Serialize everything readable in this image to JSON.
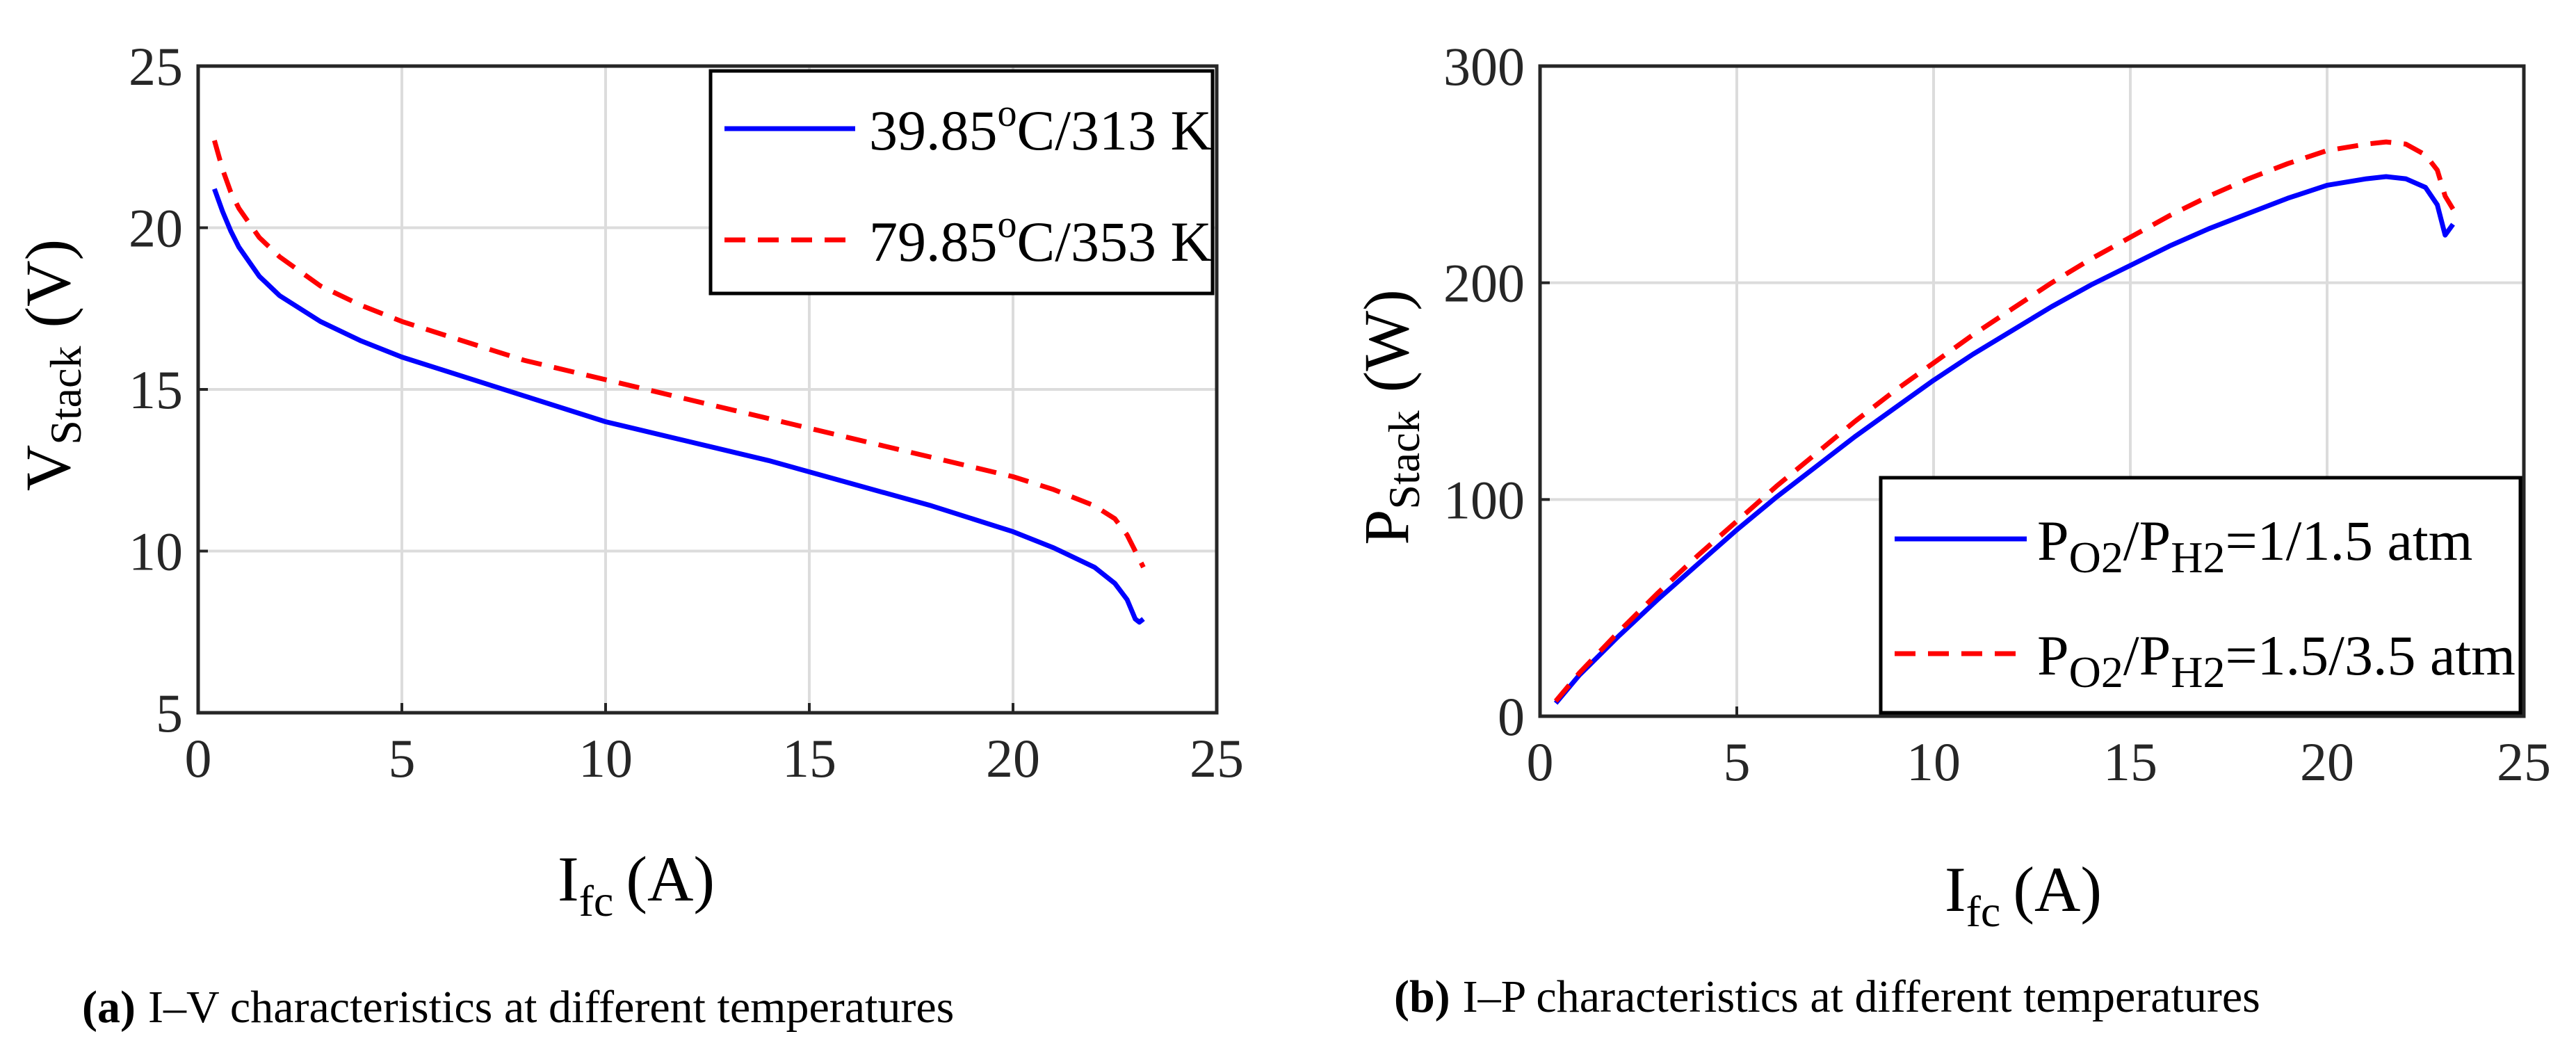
{
  "chart_data": [
    {
      "type": "line",
      "panel": "a",
      "caption_label": "(a)",
      "caption_text": "I–V characteristics at different temperatures",
      "xlabel": {
        "main": "I",
        "sub": "fc",
        "unit": "(A)"
      },
      "ylabel": {
        "main": "V",
        "sub": "Stack",
        "unit": "(V)"
      },
      "xlim": [
        0,
        25
      ],
      "ylim": [
        5,
        25
      ],
      "xticks": [
        0,
        5,
        10,
        15,
        20,
        25
      ],
      "yticks": [
        5,
        10,
        15,
        20,
        25
      ],
      "grid": true,
      "legend_position": "top-right",
      "series": [
        {
          "name": "39.85°C/313 K",
          "legend_parts": [
            "39.85",
            "o",
            "C/313 K"
          ],
          "style": "solid",
          "color": "#0000ff",
          "x": [
            0.4,
            0.6,
            0.8,
            1.0,
            1.5,
            2.0,
            3.0,
            4.0,
            5.0,
            6.0,
            8.0,
            10.0,
            12.0,
            14.0,
            16.0,
            18.0,
            20.0,
            21.0,
            22.0,
            22.5,
            22.8,
            23.0,
            23.1,
            23.2
          ],
          "y": [
            21.2,
            20.5,
            19.9,
            19.4,
            18.5,
            17.9,
            17.1,
            16.5,
            16.0,
            15.6,
            14.8,
            14.0,
            13.4,
            12.8,
            12.1,
            11.4,
            10.6,
            10.1,
            9.5,
            9.0,
            8.5,
            7.9,
            7.8,
            7.9
          ]
        },
        {
          "name": "79.85°C/353 K",
          "legend_parts": [
            "79.85",
            "o",
            "C/353 K"
          ],
          "style": "dashed",
          "color": "#ff0000",
          "x": [
            0.4,
            0.6,
            0.8,
            1.0,
            1.5,
            2.0,
            3.0,
            4.0,
            5.0,
            6.0,
            8.0,
            10.0,
            12.0,
            14.0,
            16.0,
            18.0,
            20.0,
            21.0,
            22.0,
            22.5,
            22.8,
            23.0,
            23.2
          ],
          "y": [
            22.7,
            21.8,
            21.1,
            20.6,
            19.7,
            19.1,
            18.2,
            17.6,
            17.1,
            16.7,
            15.9,
            15.3,
            14.7,
            14.1,
            13.5,
            12.9,
            12.3,
            11.9,
            11.4,
            11.0,
            10.5,
            10.0,
            9.5
          ]
        }
      ]
    },
    {
      "type": "line",
      "panel": "b",
      "caption_label": "(b)",
      "caption_text": "I–P characteristics at different temperatures",
      "xlabel": {
        "main": "I",
        "sub": "fc",
        "unit": "(A)"
      },
      "ylabel": {
        "main": "P",
        "sub": "Stack",
        "unit": "(W)"
      },
      "xlim": [
        0,
        25
      ],
      "ylim": [
        0,
        300
      ],
      "xticks": [
        0,
        5,
        10,
        15,
        20,
        25
      ],
      "yticks": [
        0,
        100,
        200,
        300
      ],
      "grid": true,
      "legend_position": "bottom-right",
      "series": [
        {
          "name": "P_O2/P_H2=1/1.5 atm",
          "legend_parts": [
            "P",
            "O2",
            "/P",
            "H2",
            "=1/1.5 atm"
          ],
          "style": "solid",
          "color": "#0000ff",
          "x": [
            0.4,
            1,
            2,
            3,
            4,
            5,
            6,
            7,
            8,
            9,
            10,
            11,
            12,
            13,
            14,
            15,
            16,
            17,
            18,
            19,
            20,
            21,
            21.5,
            22,
            22.5,
            22.8,
            23.0,
            23.2
          ],
          "y": [
            6,
            19,
            37,
            54,
            70,
            86,
            101,
            115,
            129,
            142,
            155,
            167,
            178,
            189,
            199,
            208,
            217,
            225,
            232,
            239,
            245,
            248,
            249,
            248,
            244,
            236,
            222,
            227
          ]
        },
        {
          "name": "P_O2/P_H2=1.5/3.5 atm",
          "legend_parts": [
            "P",
            "O2",
            "/P",
            "H2",
            "=1.5/3.5 atm"
          ],
          "style": "dashed",
          "color": "#ff0000",
          "x": [
            0.4,
            1,
            2,
            3,
            4,
            5,
            6,
            7,
            8,
            9,
            10,
            11,
            12,
            13,
            14,
            15,
            16,
            17,
            18,
            19,
            20,
            21,
            21.5,
            22,
            22.5,
            22.8,
            23.0,
            23.2
          ],
          "y": [
            7,
            20,
            39,
            57,
            74,
            90,
            106,
            121,
            136,
            150,
            163,
            176,
            188,
            200,
            211,
            221,
            231,
            240,
            248,
            255,
            261,
            264,
            265,
            264,
            259,
            252,
            240,
            234
          ]
        }
      ]
    }
  ]
}
